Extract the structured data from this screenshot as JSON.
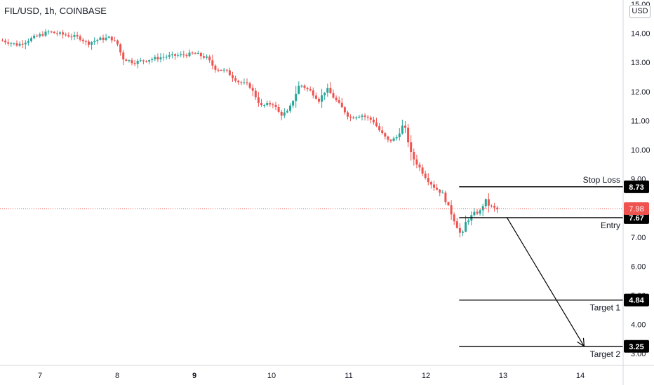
{
  "title": "FIL/USD, 1h, COINBASE",
  "currency_label": "USD",
  "colors": {
    "up": "#26a69a",
    "down": "#ef5350",
    "line": "#000000",
    "label_bg": "#000000",
    "current_price_bg": "#ef5350",
    "grid_text": "#131722",
    "axis_line": "#d1d4dc",
    "price_line": "#ef5350"
  },
  "chart_data": {
    "type": "candlestick",
    "symbol": "FIL/USD",
    "interval": "1h",
    "exchange": "COINBASE",
    "ylim": [
      2.9,
      15.1
    ],
    "xlim": [
      6.5,
      15.1
    ],
    "y_ticks": [
      "3.00",
      "4.00",
      "5.00",
      "6.00",
      "7.00",
      "8.00",
      "9.00",
      "10.00",
      "11.00",
      "12.00",
      "13.00",
      "14.00",
      "15.00"
    ],
    "x_ticks": [
      {
        "label": "7",
        "value": 7
      },
      {
        "label": "8",
        "value": 8
      },
      {
        "label": "9",
        "value": 9,
        "bold": true
      },
      {
        "label": "10",
        "value": 10
      },
      {
        "label": "11",
        "value": 11
      },
      {
        "label": "12",
        "value": 12
      },
      {
        "label": "13",
        "value": 13
      },
      {
        "label": "14",
        "value": 14
      }
    ],
    "current_price": {
      "value": 7.98,
      "label": "7.98"
    },
    "levels": [
      {
        "name": "Stop Loss",
        "value": 8.73,
        "label": "8.73",
        "x_start": 12.43,
        "label_position": "above"
      },
      {
        "name": "Entry",
        "value": 7.67,
        "label": "7.67",
        "x_start": 12.43,
        "label_position": "below"
      },
      {
        "name": "Target 1",
        "value": 4.84,
        "label": "4.84",
        "x_start": 12.43,
        "label_position": "below"
      },
      {
        "name": "Target 2",
        "value": 3.25,
        "label": "3.25",
        "x_start": 12.43,
        "label_position": "below"
      }
    ],
    "projection_arrow": {
      "from": [
        13.05,
        7.67
      ],
      "to": [
        14.05,
        3.25
      ]
    },
    "price_path": [
      [
        6.5,
        13.75
      ],
      [
        6.7,
        13.6
      ],
      [
        6.9,
        13.85
      ],
      [
        7.1,
        14.05
      ],
      [
        7.3,
        13.95
      ],
      [
        7.5,
        13.85
      ],
      [
        7.6,
        13.65
      ],
      [
        7.75,
        13.8
      ],
      [
        7.9,
        13.85
      ],
      [
        8.0,
        13.6
      ],
      [
        8.05,
        13.15
      ],
      [
        8.2,
        13.0
      ],
      [
        8.4,
        13.1
      ],
      [
        8.6,
        13.2
      ],
      [
        8.8,
        13.25
      ],
      [
        9.0,
        13.3
      ],
      [
        9.15,
        13.15
      ],
      [
        9.25,
        12.8
      ],
      [
        9.4,
        12.7
      ],
      [
        9.55,
        12.35
      ],
      [
        9.7,
        12.2
      ],
      [
        9.85,
        11.5
      ],
      [
        10.0,
        11.6
      ],
      [
        10.1,
        11.2
      ],
      [
        10.2,
        11.3
      ],
      [
        10.35,
        12.25
      ],
      [
        10.5,
        12.0
      ],
      [
        10.6,
        11.7
      ],
      [
        10.7,
        12.1
      ],
      [
        10.85,
        11.6
      ],
      [
        11.0,
        11.1
      ],
      [
        11.15,
        11.2
      ],
      [
        11.3,
        11.0
      ],
      [
        11.4,
        10.6
      ],
      [
        11.5,
        10.3
      ],
      [
        11.6,
        10.4
      ],
      [
        11.7,
        10.9
      ],
      [
        11.8,
        9.8
      ],
      [
        11.9,
        9.4
      ],
      [
        12.0,
        9.0
      ],
      [
        12.1,
        8.7
      ],
      [
        12.2,
        8.5
      ],
      [
        12.3,
        7.9
      ],
      [
        12.4,
        7.3
      ],
      [
        12.45,
        7.0
      ],
      [
        12.5,
        7.5
      ],
      [
        12.6,
        7.8
      ],
      [
        12.7,
        7.9
      ],
      [
        12.75,
        8.3
      ],
      [
        12.8,
        8.1
      ],
      [
        12.9,
        7.95
      ]
    ]
  }
}
